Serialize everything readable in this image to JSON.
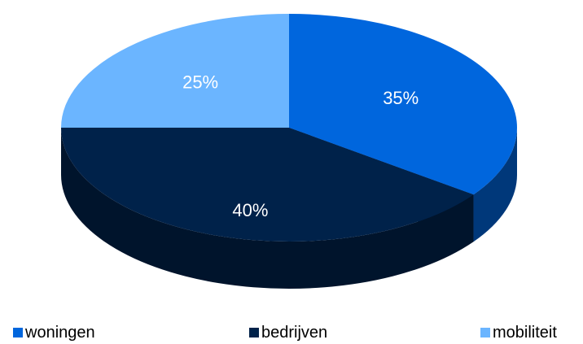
{
  "chart_data": {
    "type": "pie",
    "style": "3d",
    "categories": [
      "woningen",
      "bedrijven",
      "mobiliteit"
    ],
    "values": [
      35,
      40,
      25
    ],
    "data_labels": [
      "35%",
      "40%",
      "25%"
    ],
    "colors": [
      "#0066dd",
      "#00224a",
      "#6bb5ff"
    ],
    "title": "",
    "legend_position": "bottom"
  },
  "legend": {
    "items": [
      {
        "label": "woningen",
        "color": "#0066dd"
      },
      {
        "label": "bedrijven",
        "color": "#00224a"
      },
      {
        "label": "mobiliteit",
        "color": "#6bb5ff"
      }
    ]
  }
}
